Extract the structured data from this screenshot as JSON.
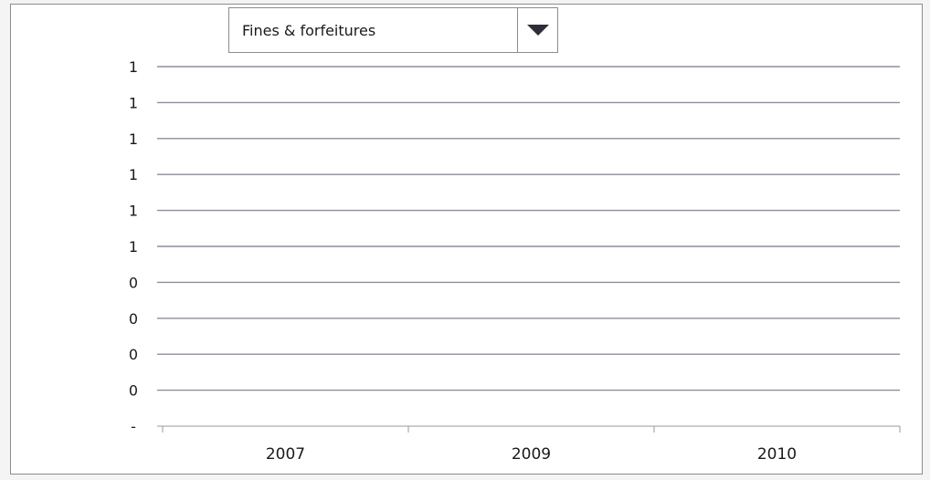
{
  "dropdown": {
    "selected": "Fines & forfeitures",
    "icon": "triangle-down-icon"
  },
  "chart_data": {
    "type": "line",
    "title": "",
    "xlabel": "",
    "ylabel": "",
    "categories": [
      "2007",
      "2009",
      "2010"
    ],
    "y_tick_labels": [
      "1",
      "1",
      "1",
      "1",
      "1",
      "1",
      "0",
      "0",
      "0",
      "0",
      "-"
    ],
    "series": [],
    "grid": true,
    "legend": "none",
    "gridline_color": "#8e8e9a"
  }
}
